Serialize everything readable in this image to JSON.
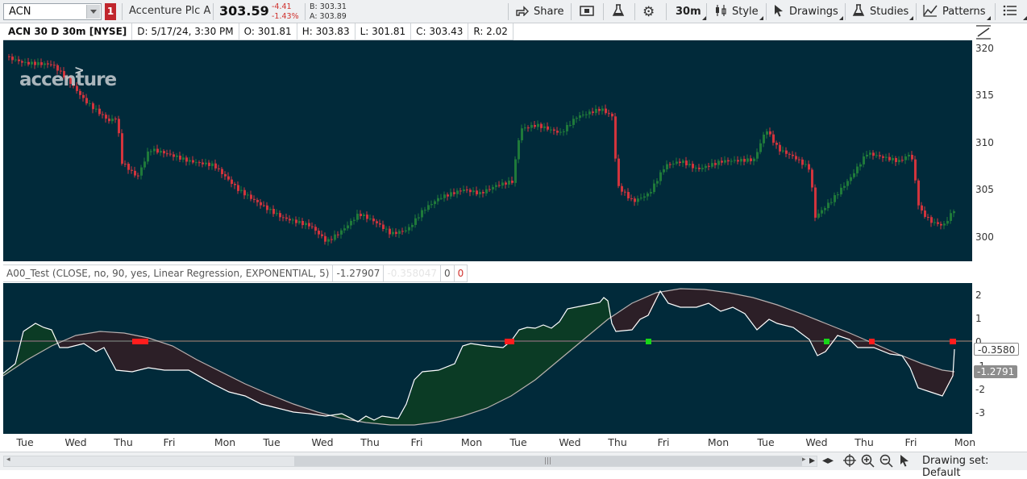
{
  "toolbar": {
    "symbol": "ACN",
    "flag_count": "1",
    "company": "Accenture Plc A",
    "last_price": "303.59",
    "net_change": "-4.41",
    "pct_change": "-1.43%",
    "bid": "B: 303.31",
    "ask": "A: 303.89",
    "buttons": {
      "share": "Share",
      "timeframe": "30m",
      "style": "Style",
      "drawings": "Drawings",
      "studies": "Studies",
      "patterns": "Patterns"
    }
  },
  "status": {
    "title": "ACN 30 D 30m [NYSE]",
    "date": "D: 5/17/24, 3:30 PM",
    "open": "O: 301.81",
    "high": "H: 303.83",
    "low": "L: 301.81",
    "close": "C: 303.43",
    "range": "R: 2.02"
  },
  "price_pane": {
    "logo_text": "accenture",
    "logo_mark": ">",
    "axis_labels": [
      "320",
      "315",
      "310",
      "305",
      "300"
    ],
    "colors": {
      "background": "#012a3a",
      "up": "#1f7a3a",
      "down": "#d2343d"
    }
  },
  "study": {
    "name": "A00_Test (CLOSE, no, 90, yes, Linear Regression, EXPONENTIAL, 5)",
    "value1": "-1.27907",
    "value2": "-0.358047",
    "value3": "0",
    "value4": "0",
    "axis_labels": [
      "2",
      "1",
      "0",
      "-1",
      "-2",
      "-3"
    ],
    "tag_main": "-0.3580",
    "tag_signal": "-1.2791",
    "colors": {
      "line_white": "#ffffff",
      "line_grey": "#b8b0b0",
      "fill_pos": "#0b3b25",
      "fill_neg": "#2c1f27",
      "zero": "#5a5a5a",
      "marker_red": "#ff1d1d",
      "marker_green": "#18d618"
    }
  },
  "time_axis": [
    "Tue",
    "Wed",
    "Thu",
    "Fri",
    "Mon",
    "Tue",
    "Wed",
    "Thu",
    "Fri",
    "Mon",
    "Tue",
    "Wed",
    "Thu",
    "Fri",
    "Mon",
    "Tue",
    "Wed",
    "Thu",
    "Fri",
    "Mon"
  ],
  "bottom": {
    "drawing_set": "Drawing set: Default"
  },
  "icons": [
    "chevron-down-icon",
    "share-icon",
    "snapshot-icon",
    "flask-icon",
    "gear-icon",
    "candle-icon",
    "cursor-icon",
    "patterns-icon",
    "menu-icon",
    "crosshair-icon",
    "zoom-in-icon",
    "zoom-out-icon",
    "pointer-icon",
    "fit-icon"
  ]
}
